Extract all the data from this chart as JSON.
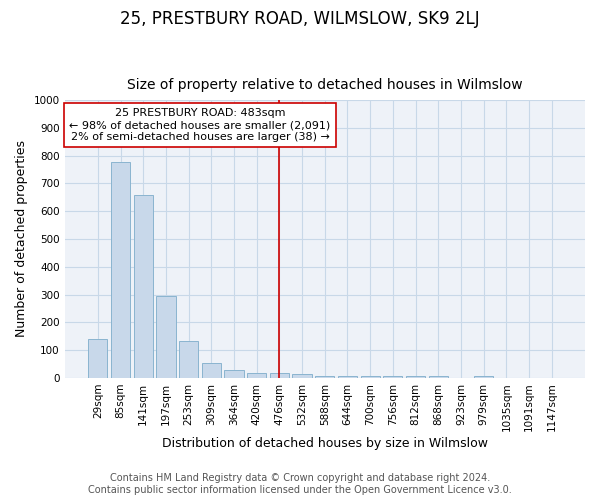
{
  "title": "25, PRESTBURY ROAD, WILMSLOW, SK9 2LJ",
  "subtitle": "Size of property relative to detached houses in Wilmslow",
  "xlabel": "Distribution of detached houses by size in Wilmslow",
  "ylabel": "Number of detached properties",
  "categories": [
    "29sqm",
    "85sqm",
    "141sqm",
    "197sqm",
    "253sqm",
    "309sqm",
    "364sqm",
    "420sqm",
    "476sqm",
    "532sqm",
    "588sqm",
    "644sqm",
    "700sqm",
    "756sqm",
    "812sqm",
    "868sqm",
    "923sqm",
    "979sqm",
    "1035sqm",
    "1091sqm",
    "1147sqm"
  ],
  "values": [
    140,
    778,
    658,
    293,
    133,
    55,
    30,
    18,
    18,
    14,
    8,
    6,
    6,
    6,
    6,
    6,
    0,
    8,
    0,
    0,
    0
  ],
  "bar_color": "#c8d8ea",
  "bar_edge_color": "#8ab4d0",
  "vline_x": 8,
  "vline_color": "#cc0000",
  "annotation_text": "25 PRESTBURY ROAD: 483sqm\n← 98% of detached houses are smaller (2,091)\n2% of semi-detached houses are larger (38) →",
  "annotation_box_color": "#ffffff",
  "annotation_box_edge": "#cc0000",
  "ylim": [
    0,
    1000
  ],
  "yticks": [
    0,
    100,
    200,
    300,
    400,
    500,
    600,
    700,
    800,
    900,
    1000
  ],
  "grid_color": "#c8d8e8",
  "background_color": "#ffffff",
  "plot_bg_color": "#eef2f8",
  "footer_line1": "Contains HM Land Registry data © Crown copyright and database right 2024.",
  "footer_line2": "Contains public sector information licensed under the Open Government Licence v3.0.",
  "title_fontsize": 12,
  "subtitle_fontsize": 10,
  "axis_label_fontsize": 9,
  "tick_fontsize": 7.5,
  "footer_fontsize": 7
}
